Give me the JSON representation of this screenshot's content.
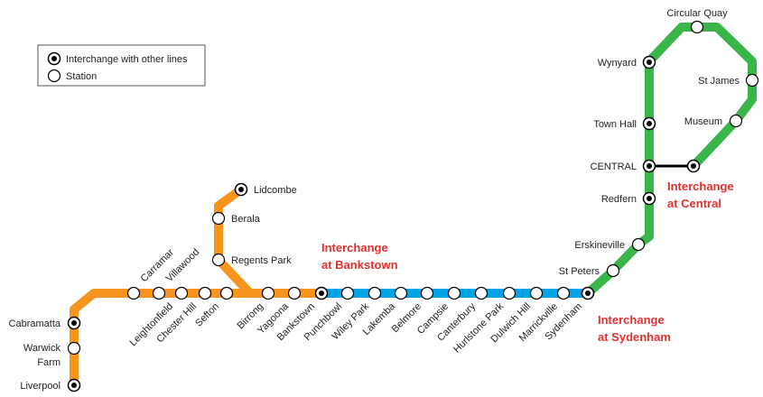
{
  "colors": {
    "bankstown_line": "#f7941d",
    "metro_segment": "#00a4e4",
    "city_circle": "#39b54a",
    "link": "#000000",
    "callout_text": "#e03030"
  },
  "legend": {
    "interchange_label": "Interchange with other lines",
    "station_label": "Station"
  },
  "stations": {
    "liverpool": "Liverpool",
    "warwick_farm": [
      "Warwick",
      "Farm"
    ],
    "cabramatta": "Cabramatta",
    "carramar": "Carramar",
    "villawood": "Villawood",
    "leightonfield": "Leightonfield",
    "chester_hill": "Chester Hill",
    "sefton": "Sefton",
    "lidcombe": "Lidcombe",
    "berala": "Berala",
    "regents_park": "Regents Park",
    "birrong": "Birrong",
    "yagoona": "Yagoona",
    "bankstown": "Bankstown",
    "punchbowl": "Punchbowl",
    "wiley_park": "Wiley Park",
    "lakemba": "Lakemba",
    "belmore": "Belmore",
    "campsie": "Campsie",
    "canterbury": "Canterbury",
    "hurlstone_park": "Hurlstone Park",
    "dulwich_hill": "Dulwich Hill",
    "marrickville": "Marrickville",
    "sydenham": "Sydenham",
    "st_peters": "St Peters",
    "erskineville": "Erskineville",
    "redfern": "Redfern",
    "central": "CENTRAL",
    "town_hall": "Town Hall",
    "wynyard": "Wynyard",
    "circular_quay": "Circular Quay",
    "st_james": "St James",
    "museum": "Museum"
  },
  "callouts": {
    "bankstown": [
      "Interchange",
      "at Bankstown"
    ],
    "central": [
      "Interchange",
      "at Central"
    ],
    "sydenham": [
      "Interchange",
      "at Sydenham"
    ]
  }
}
